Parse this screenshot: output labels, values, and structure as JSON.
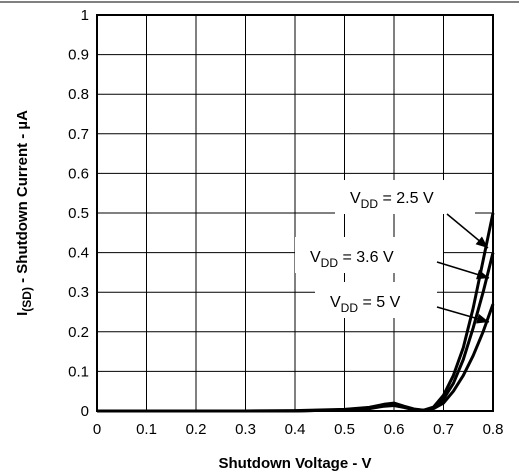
{
  "chart_data": {
    "type": "line",
    "xlabel": "Shutdown Voltage - V",
    "ylabel": {
      "main": "I",
      "sub": "(SD)",
      "rest": " - Shutdown Current - µA"
    },
    "xlim": [
      0,
      0.8
    ],
    "ylim": [
      0,
      1
    ],
    "x_ticks": [
      "0",
      "0.1",
      "0.2",
      "0.3",
      "0.4",
      "0.5",
      "0.6",
      "0.7",
      "0.8"
    ],
    "y_ticks": [
      "0",
      "0.1",
      "0.2",
      "0.3",
      "0.4",
      "0.5",
      "0.6",
      "0.7",
      "0.8",
      "0.9",
      "1"
    ],
    "grid": true,
    "line_color": "#000000",
    "series": [
      {
        "name": "VDD = 2.5 V",
        "points": [
          [
            0,
            0
          ],
          [
            0.1,
            0
          ],
          [
            0.2,
            0
          ],
          [
            0.3,
            0
          ],
          [
            0.4,
            0
          ],
          [
            0.5,
            0.003
          ],
          [
            0.55,
            0.006
          ],
          [
            0.58,
            0.012
          ],
          [
            0.6,
            0.014
          ],
          [
            0.62,
            0.009
          ],
          [
            0.64,
            0.003
          ],
          [
            0.66,
            0.002
          ],
          [
            0.68,
            0.01
          ],
          [
            0.7,
            0.04
          ],
          [
            0.72,
            0.09
          ],
          [
            0.74,
            0.16
          ],
          [
            0.76,
            0.26
          ],
          [
            0.78,
            0.38
          ],
          [
            0.8,
            0.5
          ]
        ]
      },
      {
        "name": "VDD = 3.6 V",
        "points": [
          [
            0,
            0
          ],
          [
            0.1,
            0
          ],
          [
            0.2,
            0
          ],
          [
            0.3,
            0
          ],
          [
            0.4,
            0
          ],
          [
            0.5,
            0.003
          ],
          [
            0.55,
            0.007
          ],
          [
            0.58,
            0.014
          ],
          [
            0.6,
            0.016
          ],
          [
            0.62,
            0.01
          ],
          [
            0.64,
            0.004
          ],
          [
            0.66,
            0.002
          ],
          [
            0.68,
            0.008
          ],
          [
            0.7,
            0.03
          ],
          [
            0.72,
            0.07
          ],
          [
            0.74,
            0.13
          ],
          [
            0.76,
            0.21
          ],
          [
            0.78,
            0.3
          ],
          [
            0.8,
            0.4
          ]
        ]
      },
      {
        "name": "VDD = 5 V",
        "points": [
          [
            0,
            0
          ],
          [
            0.1,
            0
          ],
          [
            0.2,
            0
          ],
          [
            0.3,
            0
          ],
          [
            0.4,
            0.001
          ],
          [
            0.5,
            0.004
          ],
          [
            0.55,
            0.009
          ],
          [
            0.58,
            0.017
          ],
          [
            0.6,
            0.02
          ],
          [
            0.62,
            0.012
          ],
          [
            0.64,
            0.005
          ],
          [
            0.66,
            0.002
          ],
          [
            0.68,
            0.006
          ],
          [
            0.7,
            0.02
          ],
          [
            0.72,
            0.05
          ],
          [
            0.74,
            0.09
          ],
          [
            0.76,
            0.14
          ],
          [
            0.78,
            0.2
          ],
          [
            0.8,
            0.27
          ]
        ]
      }
    ],
    "annotations": [
      {
        "base": "V",
        "sub": "DD",
        "rest": " = 2.5 V"
      },
      {
        "base": "V",
        "sub": "DD",
        "rest": " = 3.6 V"
      },
      {
        "base": "V",
        "sub": "DD",
        "rest": " = 5 V"
      }
    ]
  }
}
